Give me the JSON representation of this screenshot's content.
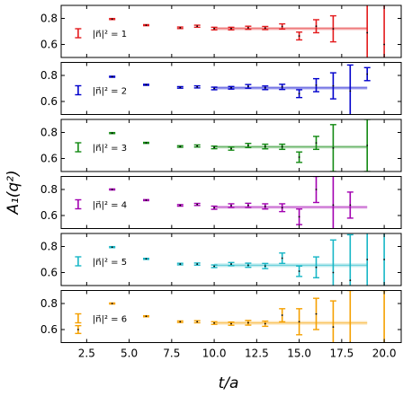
{
  "chart_data": {
    "type": "errorbar-panels",
    "xlabel": "t/a",
    "ylabel": "A₁(q²)",
    "xlim": [
      1.0,
      21.0
    ],
    "ylim": [
      0.5,
      0.9
    ],
    "xticks": [
      2.5,
      5.0,
      7.5,
      10.0,
      12.5,
      15.0,
      17.5,
      20.0
    ],
    "xtick_labels": [
      "2.5",
      "5.0",
      "7.5",
      "10.0",
      "12.5",
      "15.0",
      "17.5",
      "20.0"
    ],
    "yticks": [
      0.6,
      0.8
    ],
    "ytick_labels": [
      "0.6",
      "0.8"
    ],
    "legend_location": "center-left",
    "panels": [
      {
        "label": "|n⃗|² = 1",
        "color": "#e31a1c",
        "fit": {
          "x_start": 10,
          "x_end": 19,
          "value": 0.722,
          "band": 0.012
        },
        "points": [
          {
            "t": 4,
            "y": 0.795,
            "err": 0.004
          },
          {
            "t": 6,
            "y": 0.748,
            "err": 0.004
          },
          {
            "t": 8,
            "y": 0.728,
            "err": 0.006
          },
          {
            "t": 9,
            "y": 0.74,
            "err": 0.008
          },
          {
            "t": 10,
            "y": 0.722,
            "err": 0.01
          },
          {
            "t": 11,
            "y": 0.722,
            "err": 0.01
          },
          {
            "t": 12,
            "y": 0.728,
            "err": 0.012
          },
          {
            "t": 13,
            "y": 0.726,
            "err": 0.012
          },
          {
            "t": 14,
            "y": 0.738,
            "err": 0.02
          },
          {
            "t": 15,
            "y": 0.665,
            "err": 0.03
          },
          {
            "t": 16,
            "y": 0.74,
            "err": 0.05
          },
          {
            "t": 17,
            "y": 0.72,
            "err": 0.1
          },
          {
            "t": 19,
            "y": 0.69,
            "err": 0.3
          },
          {
            "t": 20,
            "y": 0.6,
            "err": 0.4
          }
        ]
      },
      {
        "label": "|n⃗|² = 2",
        "color": "#0000cc",
        "fit": {
          "x_start": 10,
          "x_end": 19,
          "value": 0.704,
          "band": 0.012
        },
        "points": [
          {
            "t": 4,
            "y": 0.79,
            "err": 0.004
          },
          {
            "t": 6,
            "y": 0.728,
            "err": 0.004
          },
          {
            "t": 8,
            "y": 0.708,
            "err": 0.006
          },
          {
            "t": 9,
            "y": 0.712,
            "err": 0.008
          },
          {
            "t": 10,
            "y": 0.7,
            "err": 0.01
          },
          {
            "t": 11,
            "y": 0.705,
            "err": 0.01
          },
          {
            "t": 12,
            "y": 0.716,
            "err": 0.014
          },
          {
            "t": 13,
            "y": 0.705,
            "err": 0.014
          },
          {
            "t": 14,
            "y": 0.712,
            "err": 0.02
          },
          {
            "t": 15,
            "y": 0.66,
            "err": 0.03
          },
          {
            "t": 16,
            "y": 0.725,
            "err": 0.05
          },
          {
            "t": 17,
            "y": 0.72,
            "err": 0.1
          },
          {
            "t": 18,
            "y": 0.68,
            "err": 0.2
          },
          {
            "t": 19,
            "y": 0.81,
            "err": 0.05
          }
        ]
      },
      {
        "label": "|n⃗|² = 3",
        "color": "#138a13",
        "fit": {
          "x_start": 10,
          "x_end": 19,
          "value": 0.689,
          "band": 0.012
        },
        "points": [
          {
            "t": 4,
            "y": 0.795,
            "err": 0.004
          },
          {
            "t": 6,
            "y": 0.72,
            "err": 0.004
          },
          {
            "t": 8,
            "y": 0.692,
            "err": 0.006
          },
          {
            "t": 9,
            "y": 0.696,
            "err": 0.008
          },
          {
            "t": 10,
            "y": 0.685,
            "err": 0.01
          },
          {
            "t": 11,
            "y": 0.676,
            "err": 0.012
          },
          {
            "t": 12,
            "y": 0.7,
            "err": 0.016
          },
          {
            "t": 13,
            "y": 0.692,
            "err": 0.018
          },
          {
            "t": 14,
            "y": 0.69,
            "err": 0.02
          },
          {
            "t": 15,
            "y": 0.61,
            "err": 0.04
          },
          {
            "t": 16,
            "y": 0.72,
            "err": 0.05
          },
          {
            "t": 17,
            "y": 0.68,
            "err": 0.18
          },
          {
            "t": 19,
            "y": 0.7,
            "err": 0.2
          }
        ]
      },
      {
        "label": "|n⃗|² = 4",
        "color": "#a200b0",
        "fit": {
          "x_start": 10,
          "x_end": 19,
          "value": 0.664,
          "band": 0.012
        },
        "points": [
          {
            "t": 4,
            "y": 0.8,
            "err": 0.004
          },
          {
            "t": 6,
            "y": 0.718,
            "err": 0.004
          },
          {
            "t": 8,
            "y": 0.678,
            "err": 0.006
          },
          {
            "t": 9,
            "y": 0.685,
            "err": 0.008
          },
          {
            "t": 10,
            "y": 0.66,
            "err": 0.012
          },
          {
            "t": 11,
            "y": 0.676,
            "err": 0.014
          },
          {
            "t": 12,
            "y": 0.678,
            "err": 0.016
          },
          {
            "t": 13,
            "y": 0.67,
            "err": 0.02
          },
          {
            "t": 14,
            "y": 0.66,
            "err": 0.03
          },
          {
            "t": 15,
            "y": 0.59,
            "err": 0.06
          },
          {
            "t": 16,
            "y": 0.8,
            "err": 0.1
          },
          {
            "t": 17,
            "y": 0.68,
            "err": 0.25
          },
          {
            "t": 18,
            "y": 0.68,
            "err": 0.1
          }
        ]
      },
      {
        "label": "|n⃗|² = 5",
        "color": "#17b6c6",
        "fit": {
          "x_start": 10,
          "x_end": 19,
          "value": 0.656,
          "band": 0.014
        },
        "points": [
          {
            "t": 4,
            "y": 0.795,
            "err": 0.004
          },
          {
            "t": 6,
            "y": 0.705,
            "err": 0.004
          },
          {
            "t": 8,
            "y": 0.665,
            "err": 0.006
          },
          {
            "t": 9,
            "y": 0.665,
            "err": 0.008
          },
          {
            "t": 10,
            "y": 0.648,
            "err": 0.01
          },
          {
            "t": 11,
            "y": 0.665,
            "err": 0.012
          },
          {
            "t": 12,
            "y": 0.656,
            "err": 0.016
          },
          {
            "t": 13,
            "y": 0.65,
            "err": 0.02
          },
          {
            "t": 14,
            "y": 0.71,
            "err": 0.04
          },
          {
            "t": 15,
            "y": 0.61,
            "err": 0.04
          },
          {
            "t": 16,
            "y": 0.64,
            "err": 0.08
          },
          {
            "t": 17,
            "y": 0.6,
            "err": 0.25
          },
          {
            "t": 18,
            "y": 0.54,
            "err": 0.35
          },
          {
            "t": 19,
            "y": 0.7,
            "err": 0.3
          },
          {
            "t": 20,
            "y": 0.7,
            "err": 0.3
          }
        ]
      },
      {
        "label": "|n⃗|² = 6",
        "color": "#f5a000",
        "fit": {
          "x_start": 10,
          "x_end": 19,
          "value": 0.651,
          "band": 0.014
        },
        "points": [
          {
            "t": 2,
            "y": 0.6,
            "err": 0.03
          },
          {
            "t": 4,
            "y": 0.8,
            "err": 0.004
          },
          {
            "t": 6,
            "y": 0.702,
            "err": 0.004
          },
          {
            "t": 8,
            "y": 0.66,
            "err": 0.006
          },
          {
            "t": 9,
            "y": 0.66,
            "err": 0.008
          },
          {
            "t": 10,
            "y": 0.65,
            "err": 0.01
          },
          {
            "t": 11,
            "y": 0.645,
            "err": 0.012
          },
          {
            "t": 12,
            "y": 0.652,
            "err": 0.018
          },
          {
            "t": 13,
            "y": 0.645,
            "err": 0.02
          },
          {
            "t": 14,
            "y": 0.71,
            "err": 0.05
          },
          {
            "t": 15,
            "y": 0.66,
            "err": 0.1
          },
          {
            "t": 16,
            "y": 0.72,
            "err": 0.12
          },
          {
            "t": 17,
            "y": 0.62,
            "err": 0.2
          },
          {
            "t": 18,
            "y": 0.5,
            "err": 0.4
          },
          {
            "t": 20,
            "y": 0.5,
            "err": 0.4
          }
        ]
      }
    ]
  }
}
